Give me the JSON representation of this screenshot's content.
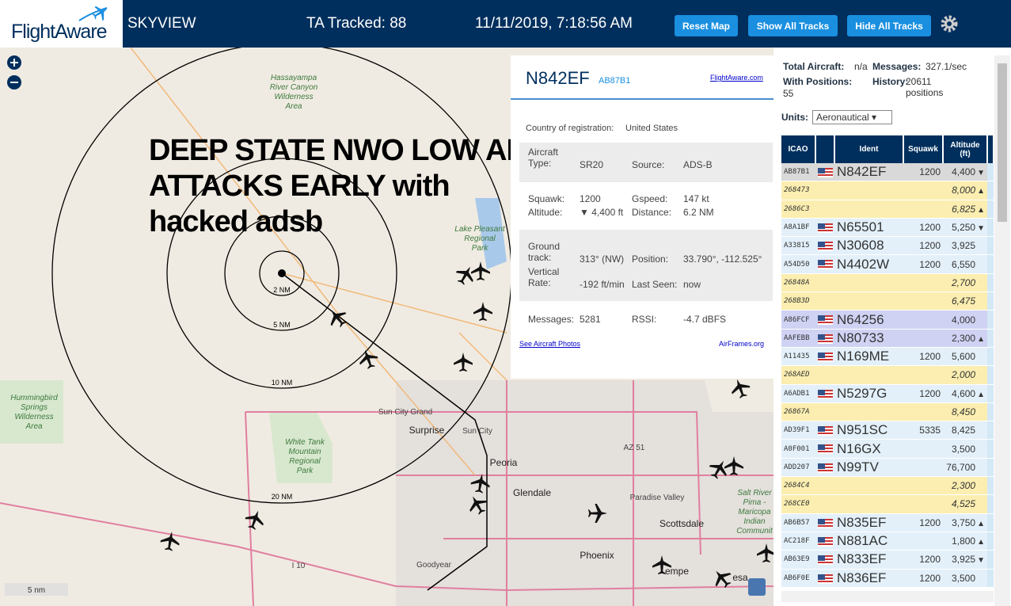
{
  "header": {
    "logo": "FlightAware",
    "app": "SKYVIEW",
    "tracked": "TA Tracked: 88",
    "datetime": "11/11/2019, 7:18:56 AM",
    "buttons": [
      "Reset Map",
      "Show All Tracks",
      "Hide All Tracks"
    ]
  },
  "map": {
    "overlay": [
      "DEEP STATE NWO LOW ALT",
      "ATTACKS EARLY with",
      "hacked adsb"
    ],
    "rings": [
      "2 NM",
      "5 NM",
      "10 NM",
      "20 NM"
    ],
    "places": [
      [
        "Hassayampa",
        "River Canyon",
        "Wilderness",
        "Area"
      ],
      [
        "Lake Pleasant",
        "Regional",
        "Park"
      ],
      [
        "Hummingbird",
        "Springs",
        "Wilderness",
        "Area"
      ],
      [
        "White Tank",
        "Mountain",
        "Regional",
        "Park"
      ],
      [
        "Sun City Grand"
      ],
      [
        "Surprise"
      ],
      [
        "Sun City"
      ],
      [
        "Peoria"
      ],
      [
        "Glendale"
      ],
      [
        "Paradise Valley"
      ],
      [
        "Scottsdale"
      ],
      [
        "Phoenix"
      ],
      [
        "empe"
      ],
      [
        "Salt River",
        "Pima -",
        "Maricopa",
        "Indian",
        "Communit"
      ],
      [
        "Goodyear"
      ],
      [
        "I 10"
      ],
      [
        "AZ 51"
      ],
      [
        "esa"
      ]
    ],
    "scale": "5 nm"
  },
  "popup": {
    "ident": "N842EF",
    "hex": "AB87B1",
    "link": "FlightAware.com",
    "country": {
      "label": "Country of registration:",
      "value": "United States"
    },
    "type": {
      "label": "Aircraft Type:",
      "value": "SR20"
    },
    "source": {
      "label": "Source:",
      "value": "ADS-B"
    },
    "squawk": {
      "label": "Squawk:",
      "value": "1200"
    },
    "gspeed": {
      "label": "Gspeed:",
      "value": "147 kt"
    },
    "altitude": {
      "label": "Altitude:",
      "value": "▼ 4,400 ft"
    },
    "distance": {
      "label": "Distance:",
      "value": "6.2 NM"
    },
    "track": {
      "label": "Ground track:",
      "value": "313° (NW)"
    },
    "position": {
      "label": "Position:",
      "value": "33.790°, -112.525°"
    },
    "vrate": {
      "label": "Vertical Rate:",
      "value": "-192 ft/min"
    },
    "seen": {
      "label": "Last Seen:",
      "value": "now"
    },
    "messages": {
      "label": "Messages:",
      "value": "5281"
    },
    "rssi": {
      "label": "RSSI:",
      "value": "-4.7 dBFS"
    },
    "photos": "See Aircraft Photos",
    "airframes": "AirFrames.org"
  },
  "stats": {
    "total": {
      "label": "Total Aircraft:",
      "value": "n/a"
    },
    "messages": {
      "label": "Messages:",
      "value": "327.1/sec"
    },
    "positions": {
      "label": "With Positions:",
      "value": "55"
    },
    "history": {
      "label": "History:",
      "value": "20611 positions"
    }
  },
  "units": {
    "label": "Units:",
    "value": "Aeronautical"
  },
  "table": {
    "columns": [
      "ICAO",
      "Ident",
      "Squawk",
      "Altitude (ft)"
    ],
    "rows": [
      {
        "icao": "AB87B1",
        "flag": true,
        "ident": "N842EF",
        "squawk": "1200",
        "altitude": "4,400",
        "trend": "▼",
        "color": "#d9d9d9"
      },
      {
        "icao": "268473",
        "altitude": "8,000",
        "trend": "▲",
        "color": "#fbeeb0",
        "italic": true
      },
      {
        "icao": "2686C3",
        "altitude": "6,825",
        "trend": "▲",
        "color": "#fbeeb0",
        "italic": true
      },
      {
        "icao": "A8A1BF",
        "flag": true,
        "ident": "N65501",
        "squawk": "1200",
        "altitude": "5,250",
        "trend": "▼",
        "color": "#e3f0fa"
      },
      {
        "icao": "A33815",
        "flag": true,
        "ident": "N30608",
        "squawk": "1200",
        "altitude": "3,925",
        "color": "#e3f0fa"
      },
      {
        "icao": "A54D50",
        "flag": true,
        "ident": "N4402W",
        "squawk": "1200",
        "altitude": "6,550",
        "color": "#e3f0fa"
      },
      {
        "icao": "26848A",
        "altitude": "2,700",
        "color": "#fbeeb0",
        "italic": true
      },
      {
        "icao": "268B3D",
        "altitude": "6,475",
        "color": "#fbeeb0",
        "italic": true
      },
      {
        "icao": "A86FCF",
        "flag": true,
        "ident": "N64256",
        "altitude": "4,000",
        "color": "#cfd2f3"
      },
      {
        "icao": "AAFEBB",
        "flag": true,
        "ident": "N80733",
        "altitude": "2,300",
        "trend": "▲",
        "color": "#cfd2f3"
      },
      {
        "icao": "A11435",
        "flag": true,
        "ident": "N169ME",
        "squawk": "1200",
        "altitude": "5,600",
        "color": "#e3f0fa"
      },
      {
        "icao": "268AED",
        "altitude": "2,000",
        "color": "#fbeeb0",
        "italic": true
      },
      {
        "icao": "A6ADB1",
        "flag": true,
        "ident": "N5297G",
        "squawk": "1200",
        "altitude": "4,600",
        "trend": "▲",
        "color": "#e3f0fa"
      },
      {
        "icao": "26867A",
        "altitude": "8,450",
        "color": "#fbeeb0",
        "italic": true
      },
      {
        "icao": "AD39F1",
        "flag": true,
        "ident": "N951SC",
        "squawk": "5335",
        "altitude": "8,425",
        "color": "#e3f0fa"
      },
      {
        "icao": "A0F001",
        "flag": true,
        "ident": "N16GX",
        "altitude": "3,500",
        "color": "#e3f0fa"
      },
      {
        "icao": "ADD207",
        "flag": true,
        "ident": "N99TV",
        "altitude": "76,700",
        "color": "#e3f0fa"
      },
      {
        "icao": "2684C4",
        "altitude": "2,300",
        "color": "#fbeeb0",
        "italic": true
      },
      {
        "icao": "268CE0",
        "altitude": "4,525",
        "color": "#fbeeb0",
        "italic": true
      },
      {
        "icao": "AB6B57",
        "flag": true,
        "ident": "N835EF",
        "squawk": "1200",
        "altitude": "3,750",
        "trend": "▲",
        "color": "#e3f0fa"
      },
      {
        "icao": "AC218F",
        "flag": true,
        "ident": "N881AC",
        "altitude": "1,800",
        "trend": "▲",
        "color": "#e3f0fa"
      },
      {
        "icao": "AB63E9",
        "flag": true,
        "ident": "N833EF",
        "squawk": "1200",
        "altitude": "3,925",
        "trend": "▼",
        "color": "#e3f0fa"
      },
      {
        "icao": "AB6F0E",
        "flag": true,
        "ident": "N836EF",
        "squawk": "1200",
        "altitude": "3,500",
        "color": "#e3f0fa"
      }
    ]
  }
}
